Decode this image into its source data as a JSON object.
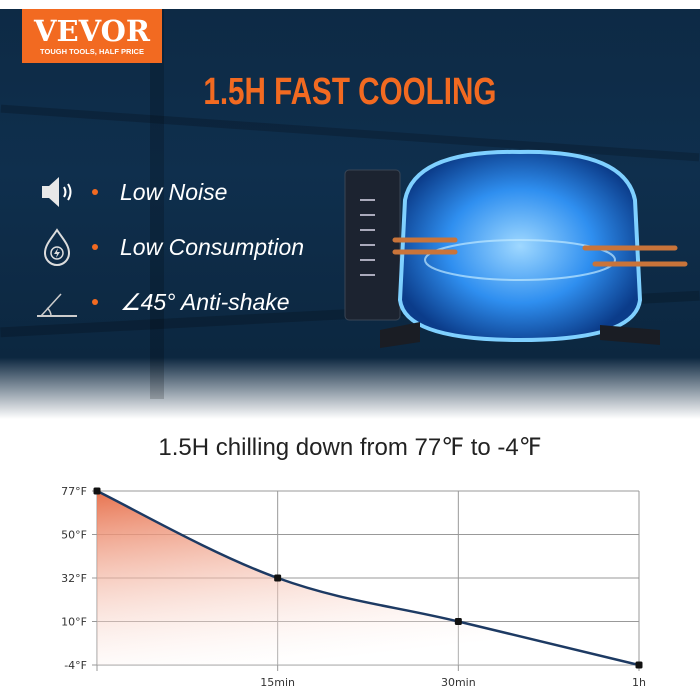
{
  "brand": {
    "name": "VEVOR",
    "tagline": "TOUGH TOOLS, HALF PRICE",
    "color": "#f26a21"
  },
  "headline": "1.5H FAST COOLING",
  "features": [
    {
      "icon": "speaker-icon",
      "label": "Low Noise"
    },
    {
      "icon": "energy-drop-icon",
      "label": "Low Consumption"
    },
    {
      "icon": "angle-icon",
      "label": "∠45° Anti-shake"
    }
  ],
  "colors": {
    "accent": "#f26a21",
    "banner": "#0f2f4d",
    "line": "#1d3a63",
    "fill": "#e8734f"
  },
  "chart_data": {
    "type": "area",
    "title": "1.5H chilling down from 77℉ to -4℉",
    "x_ticks": [
      "",
      "15min",
      "30min",
      "1h"
    ],
    "y_ticks": [
      "77°F",
      "50°F",
      "32°F",
      "10°F",
      "-4°F"
    ],
    "y_tick_values": [
      77,
      50,
      32,
      10,
      -4
    ],
    "points": [
      {
        "x": "0",
        "y": 77
      },
      {
        "x": "15min",
        "y": 32
      },
      {
        "x": "30min",
        "y": 10
      },
      {
        "x": "1h",
        "y": -4
      }
    ],
    "grid": true,
    "legend": "none"
  }
}
